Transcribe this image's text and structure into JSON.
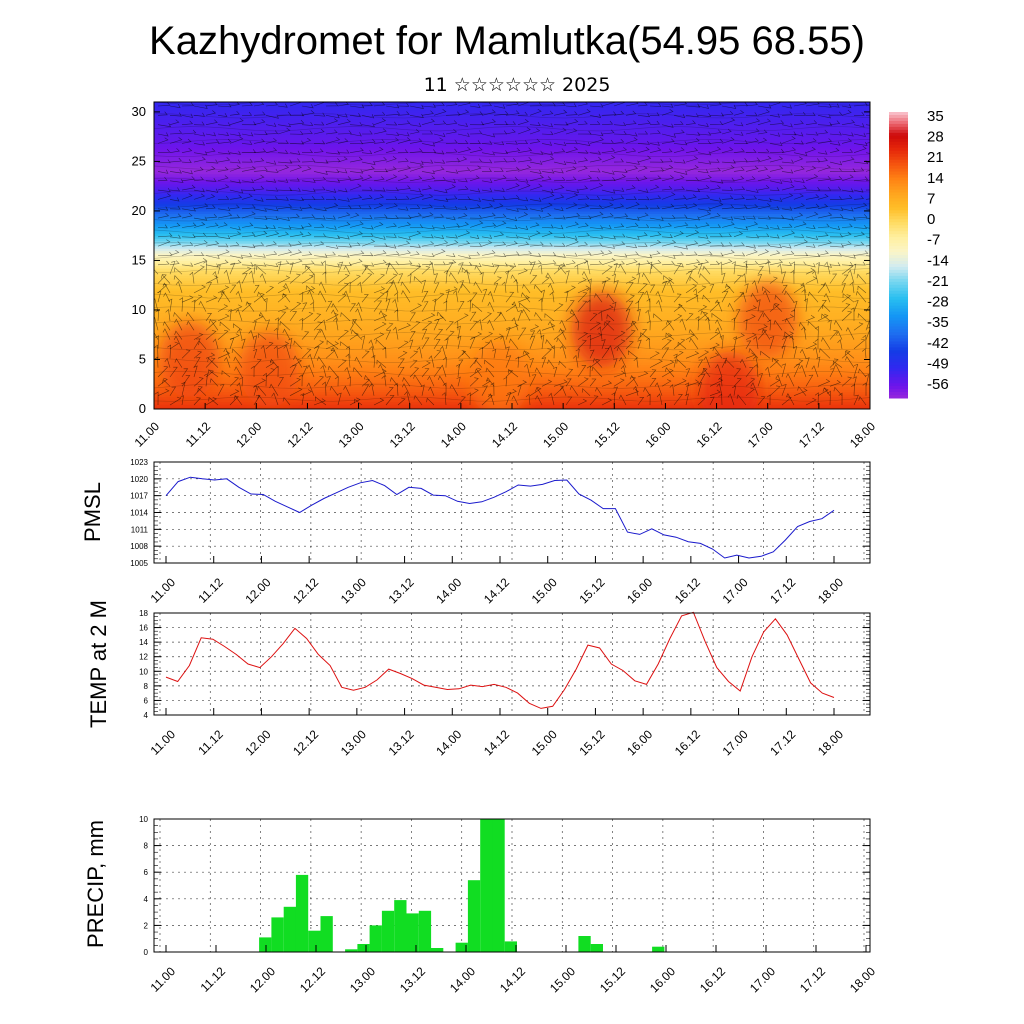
{
  "title": "Kazhydromet for Mamlutka(54.95 68.55)",
  "subtitle": "11 ☆☆☆☆☆☆ 2025",
  "time_labels": [
    "11.00",
    "11.12",
    "12.00",
    "12.12",
    "13.00",
    "13.12",
    "14.00",
    "14.12",
    "15.00",
    "15.12",
    "16.00",
    "16.12",
    "17.00",
    "17.12",
    "18.00"
  ],
  "colors": {
    "pmsl_line": "#1a1acc",
    "temp_line": "#dd1111",
    "precip_bar": "#11dd22"
  },
  "chart_data": [
    {
      "id": "cross-section",
      "type": "heatmap",
      "title": "",
      "xlabel": "",
      "ylabel": "",
      "y_ticks": [
        0,
        5,
        10,
        15,
        20,
        25,
        30
      ],
      "ylim": [
        0,
        31
      ],
      "colorbar_ticks": [
        "35",
        "28",
        "21",
        "14",
        "7",
        "0",
        "-7",
        "-14",
        "-21",
        "-28",
        "-35",
        "-42",
        "-49",
        "-56"
      ],
      "value_range": [
        -60,
        38
      ],
      "wind_barbs": true,
      "bands": [
        {
          "level": 0,
          "value": 24
        },
        {
          "level": 2,
          "value": 19
        },
        {
          "level": 5,
          "value": 13
        },
        {
          "level": 9,
          "value": 8
        },
        {
          "level": 12,
          "value": 5
        },
        {
          "level": 14,
          "value": 0
        },
        {
          "level": 15.5,
          "value": -9
        },
        {
          "level": 17.5,
          "value": -25
        },
        {
          "level": 20,
          "value": -40
        },
        {
          "level": 22,
          "value": -52
        },
        {
          "level": 24,
          "value": -60
        },
        {
          "level": 27,
          "value": -55
        },
        {
          "level": 31,
          "value": -50
        }
      ],
      "hot_spots": [
        {
          "x": 1.4,
          "level": 5,
          "value": 22
        },
        {
          "x": 4.5,
          "level": 4,
          "value": 21
        },
        {
          "x": 17.5,
          "level": 8,
          "value": 27
        },
        {
          "x": 24.0,
          "level": 9,
          "value": 21
        },
        {
          "x": 22.5,
          "level": 2,
          "value": 25
        },
        {
          "x": 13.5,
          "level": 3,
          "value": 16
        }
      ]
    },
    {
      "id": "pmsl",
      "type": "line",
      "ylabel": "PMSL",
      "ylim": [
        1005,
        1023
      ],
      "y_ticks": [
        1005,
        1008,
        1011,
        1014,
        1017,
        1020,
        1023
      ],
      "series": [
        {
          "name": "",
          "values": [
            1017,
            1019.5,
            1020.3,
            1020,
            1019.8,
            1020,
            1018.5,
            1017.3,
            1017.2,
            1016,
            1015,
            1014,
            1015.3,
            1016.5,
            1017.5,
            1018.5,
            1019.3,
            1019.7,
            1018.8,
            1017.2,
            1018.5,
            1018.3,
            1017.1,
            1017,
            1016,
            1015.6,
            1015.9,
            1016.7,
            1017.7,
            1018.9,
            1018.7,
            1019,
            1019.7,
            1019.8,
            1017.3,
            1016.2,
            1014.7,
            1014.7,
            1010.5,
            1010.1,
            1011.1,
            1010,
            1009.6,
            1008.8,
            1008.5,
            1007.5,
            1005.9,
            1006.4,
            1005.9,
            1006.2,
            1007,
            1009.1,
            1011.5,
            1012.4,
            1012.9,
            1014.4
          ]
        }
      ]
    },
    {
      "id": "temp2m",
      "type": "line",
      "ylabel": "TEMP at 2 M",
      "ylim": [
        4,
        18
      ],
      "y_ticks": [
        4,
        6,
        8,
        10,
        12,
        14,
        16,
        18
      ],
      "series": [
        {
          "name": "",
          "values": [
            9.2,
            8.6,
            10.8,
            14.6,
            14.4,
            13.4,
            12.3,
            11,
            10.5,
            12,
            13.8,
            15.9,
            14.5,
            12.3,
            10.8,
            7.8,
            7.4,
            7.8,
            8.8,
            10.3,
            9.7,
            9,
            8.1,
            7.8,
            7.5,
            7.6,
            8.1,
            7.9,
            8.2,
            7.8,
            7,
            5.6,
            4.9,
            5.2,
            7.5,
            10.3,
            13.6,
            13.2,
            11,
            10.1,
            8.7,
            8.2,
            11,
            14.5,
            17.6,
            18.1,
            14.1,
            10.5,
            8.6,
            7.3,
            12,
            15.4,
            17.2,
            15,
            11.7,
            8.4,
            7,
            6.4
          ]
        }
      ]
    },
    {
      "id": "precip",
      "type": "bar",
      "ylabel": "PRECIP, mm",
      "ylim": [
        0,
        10
      ],
      "y_ticks": [
        0,
        2,
        4,
        6,
        8,
        10
      ],
      "values": [
        0,
        0,
        0,
        0,
        0,
        0,
        0,
        0,
        1.1,
        2.6,
        3.4,
        5.8,
        1.6,
        2.7,
        0,
        0.2,
        0.6,
        2,
        3.1,
        3.9,
        2.9,
        3.1,
        0.3,
        0,
        0.7,
        5.4,
        10,
        10,
        0.8,
        0,
        0,
        0,
        0,
        0,
        1.2,
        0.6,
        0,
        0,
        0,
        0,
        0.4,
        0,
        0,
        0,
        0,
        0,
        0,
        0,
        0,
        0,
        0,
        0,
        0,
        0,
        0,
        0,
        0,
        0
      ]
    }
  ]
}
